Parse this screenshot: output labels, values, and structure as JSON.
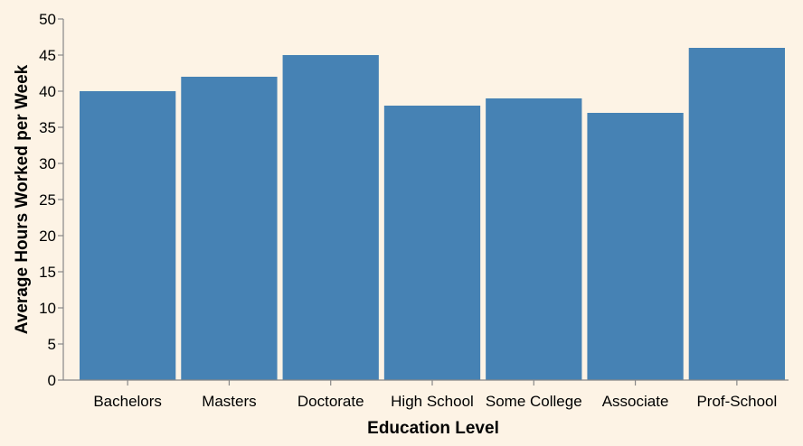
{
  "chart_data": {
    "type": "bar",
    "title": "",
    "xlabel": "Education Level",
    "ylabel": "Average Hours Worked per Week",
    "categories": [
      "Bachelors",
      "Masters",
      "Doctorate",
      "High School",
      "Some College",
      "Associate",
      "Prof-School"
    ],
    "values": [
      40,
      42,
      45,
      38,
      39,
      37,
      46
    ],
    "ylim": [
      0,
      50
    ],
    "yticks": [
      0,
      5,
      10,
      15,
      20,
      25,
      30,
      35,
      40,
      45,
      50
    ],
    "grid": false,
    "legend": "none",
    "colors": {
      "bar": "#4682b4",
      "background": "#fdf3e5",
      "axis": "#888888",
      "text": "#000000"
    }
  }
}
